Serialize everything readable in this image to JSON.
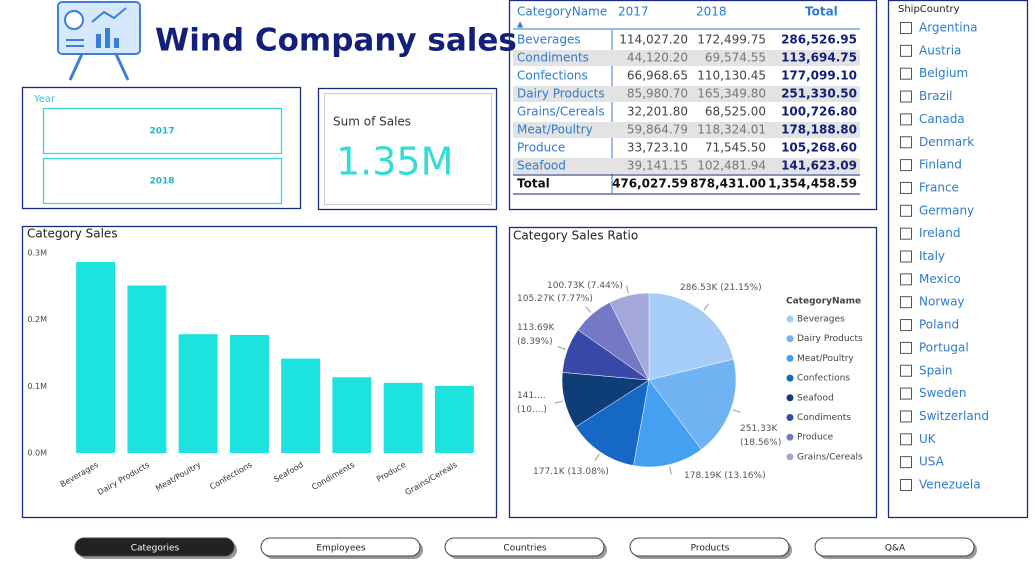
{
  "header": {
    "title": "Wind Company sales"
  },
  "year_slicer": {
    "title": "Year",
    "options": [
      "2017",
      "2018"
    ]
  },
  "card": {
    "label": "Sum of Sales",
    "value": "1.35M"
  },
  "table": {
    "columns": [
      "CategoryName",
      "2017",
      "2018",
      "Total"
    ],
    "rows": [
      [
        "Beverages",
        "114,027.20",
        "172,499.75",
        "286,526.95"
      ],
      [
        "Condiments",
        "44,120.20",
        "69,574.55",
        "113,694.75"
      ],
      [
        "Confections",
        "66,968.65",
        "110,130.45",
        "177,099.10"
      ],
      [
        "Dairy Products",
        "85,980.70",
        "165,349.80",
        "251,330.50"
      ],
      [
        "Grains/Cereals",
        "32,201.80",
        "68,525.00",
        "100,726.80"
      ],
      [
        "Meat/Poultry",
        "59,864.79",
        "118,324.01",
        "178,188.80"
      ],
      [
        "Produce",
        "33,723.10",
        "71,545.50",
        "105,268.60"
      ],
      [
        "Seafood",
        "39,141.15",
        "102,481.94",
        "141,623.09"
      ]
    ],
    "total": [
      "Total",
      "476,027.59",
      "878,431.00",
      "1,354,458.59"
    ]
  },
  "country_slicer": {
    "title": "ShipCountry",
    "options": [
      "Argentina",
      "Austria",
      "Belgium",
      "Brazil",
      "Canada",
      "Denmark",
      "Finland",
      "France",
      "Germany",
      "Ireland",
      "Italy",
      "Mexico",
      "Norway",
      "Poland",
      "Portugal",
      "Spain",
      "Sweden",
      "Switzerland",
      "UK",
      "USA",
      "Venezuela"
    ]
  },
  "nav": {
    "buttons": [
      "Categories",
      "Employees",
      "Countries",
      "Products",
      "Q&A"
    ],
    "active": 0
  },
  "chart_data": [
    {
      "type": "bar",
      "title": "Category Sales",
      "categories": [
        "Beverages",
        "Dairy Products",
        "Meat/Poultry",
        "Confections",
        "Seafood",
        "Condiments",
        "Produce",
        "Grains/Cereals"
      ],
      "values": [
        286526.95,
        251330.5,
        178188.8,
        177099.1,
        141623.09,
        113694.75,
        105268.6,
        100726.8
      ],
      "color": "#1de3df",
      "ylim": [
        0,
        300000
      ],
      "yticks": [
        {
          "value": 0,
          "label": "0.0M"
        },
        {
          "value": 100000,
          "label": "0.1M"
        },
        {
          "value": 200000,
          "label": "0.2M"
        },
        {
          "value": 300000,
          "label": "0.3M"
        }
      ]
    },
    {
      "type": "pie",
      "title": "Category Sales Ratio",
      "legend_title": "CategoryName",
      "categories": [
        "Beverages",
        "Dairy Products",
        "Meat/Poultry",
        "Confections",
        "Seafood",
        "Condiments",
        "Produce",
        "Grains/Cereals"
      ],
      "values": [
        286530,
        251330,
        178190,
        177100,
        141620,
        113690,
        105270,
        100730
      ],
      "value_labels": [
        "286.53K (21.15%)",
        "251.33K (18.56%)",
        "178.19K (13.16%)",
        "177.1K (13.08%)",
        "141.... (10....)",
        "113.69K (8.39%)",
        "105.27K (7.77%)",
        "100.73K (7.44%)"
      ],
      "colors": [
        "#a6cdf8",
        "#6fb3f3",
        "#45a0f2",
        "#1668c7",
        "#0e3d78",
        "#3949a8",
        "#7479c6",
        "#a4a7dc"
      ]
    }
  ]
}
